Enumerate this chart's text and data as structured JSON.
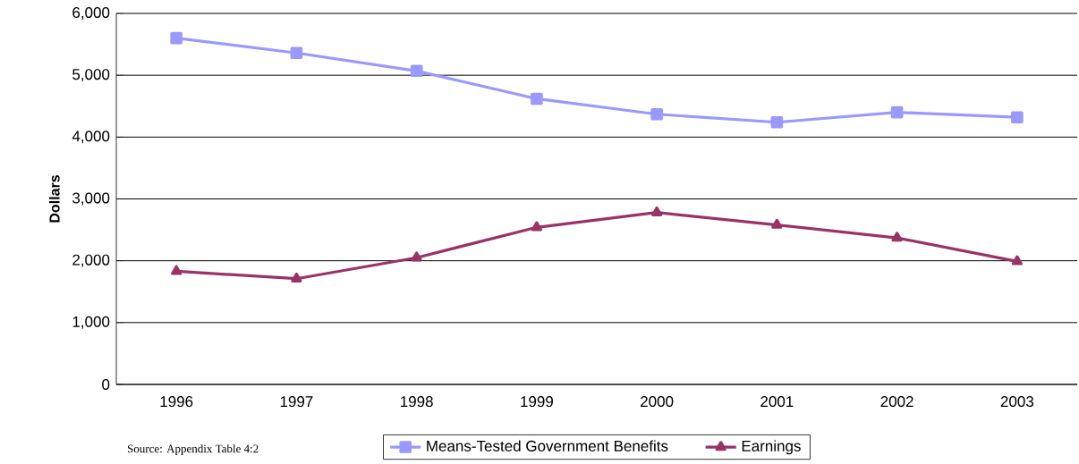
{
  "chart_data": {
    "type": "line",
    "ylabel": "Dollars",
    "categories": [
      "1996",
      "1997",
      "1998",
      "1999",
      "2000",
      "2001",
      "2002",
      "2003"
    ],
    "series": [
      {
        "name": "Means-Tested Government Benefits",
        "color": "#9999ff",
        "marker": "square",
        "values": [
          5600,
          5360,
          5070,
          4620,
          4370,
          4240,
          4400,
          4320
        ]
      },
      {
        "name": "Earnings",
        "color": "#993366",
        "marker": "triangle",
        "values": [
          1830,
          1710,
          2050,
          2540,
          2780,
          2580,
          2370,
          1990
        ]
      }
    ],
    "ylim": [
      0,
      6000
    ],
    "yticks": [
      0,
      {
        "value": 1000,
        "label": "1,000"
      },
      {
        "value": 2000,
        "label": "2,000"
      },
      {
        "value": 3000,
        "label": "3,000"
      },
      {
        "value": 4000,
        "label": "4,000"
      },
      {
        "value": 5000,
        "label": "5,000"
      },
      {
        "value": 6000,
        "label": "6,000"
      }
    ],
    "grid": "y",
    "legend": "bottom",
    "line_style": "solid",
    "annotations": [
      "Source: Appendix Table 4:2"
    ]
  }
}
